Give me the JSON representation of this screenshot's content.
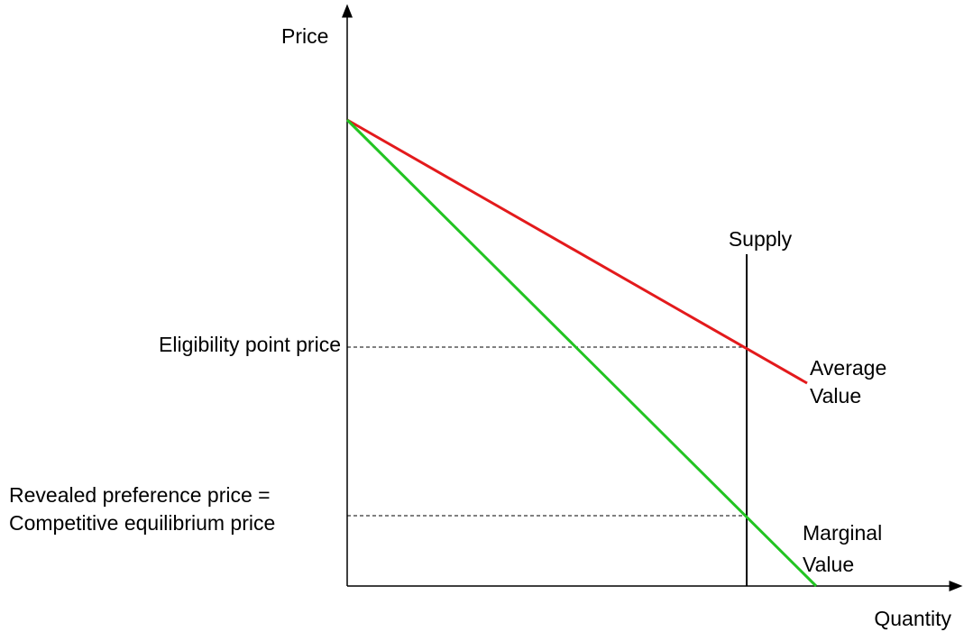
{
  "axes": {
    "y_label": "Price",
    "x_label": "Quantity"
  },
  "curves": {
    "supply": {
      "label": "Supply"
    },
    "average_value": {
      "label_lines": [
        "Average",
        "Value"
      ]
    },
    "marginal_value": {
      "label_lines": [
        "Marginal",
        "Value"
      ]
    }
  },
  "price_levels": {
    "eligibility": {
      "label_lines": [
        "Eligibility point price"
      ]
    },
    "revealed": {
      "label_lines": [
        "Revealed preference price =",
        "Competitive equilibrium price"
      ]
    }
  }
}
